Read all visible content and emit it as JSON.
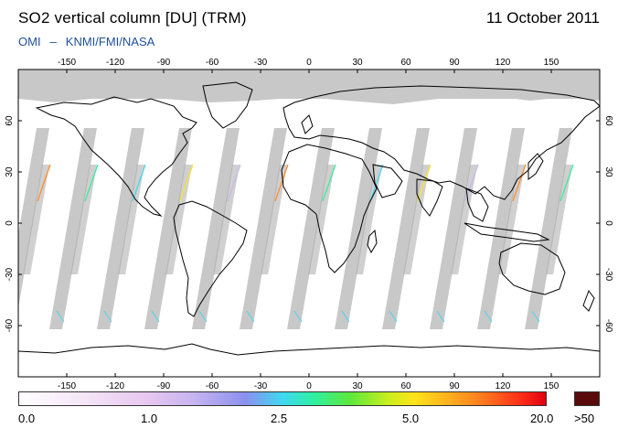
{
  "header": {
    "title": "SO2 vertical column [DU] (TRM)",
    "date": "11 October 2011",
    "credit_left": "OMI",
    "credit_sep": "–",
    "credit_right": "KNMI/FMI/NASA"
  },
  "map": {
    "projection": "equirectangular",
    "lon_ticks": [
      "-150",
      "-120",
      "-90",
      "-60",
      "-30",
      "0",
      "30",
      "60",
      "90",
      "120",
      "150"
    ],
    "lat_ticks": [
      "60",
      "30",
      "0",
      "-30",
      "-60"
    ],
    "colors": {
      "no_data": "#c8c8c8",
      "swath_shadow": "#aaaaaa",
      "coastline": "#000000",
      "background": "#ffffff"
    }
  },
  "colorbar": {
    "labels": [
      "0.0",
      "1.0",
      "2.5",
      "5.0",
      "20.0"
    ],
    "overflow_label": ">50",
    "overflow_color": "#5a0a0a"
  }
}
